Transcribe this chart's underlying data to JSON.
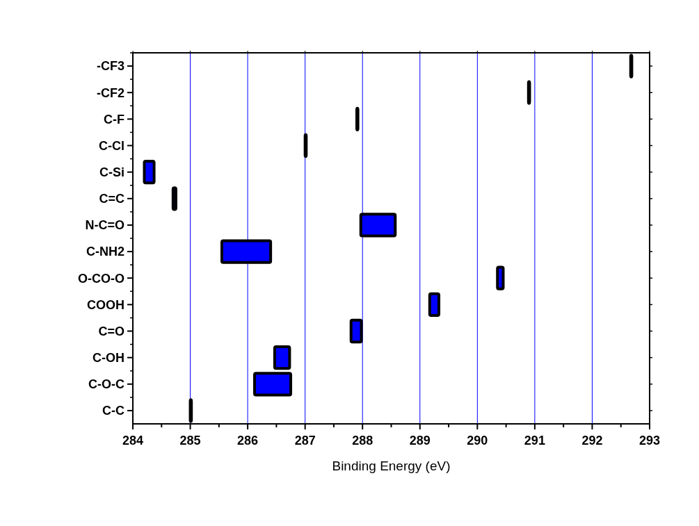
{
  "chart_data": {
    "type": "bar",
    "orientation": "horizontal",
    "xlabel": "Binding Energy (eV)",
    "categories": [
      "-CF3",
      "-CF2",
      "C-F",
      "C-Cl",
      "C-Si",
      "C=C",
      "N-C=O",
      "C-NH2",
      "O-CO-O",
      "COOH",
      "C=O",
      "C-OH",
      "C-O-C",
      "C-C"
    ],
    "base": [
      292.67,
      290.89,
      287.9,
      287.0,
      284.2,
      284.7,
      287.97,
      285.55,
      290.35,
      289.17,
      287.8,
      286.47,
      286.12,
      285.0
    ],
    "values": [
      0.02,
      0.02,
      0.02,
      0.02,
      0.17,
      0.05,
      0.6,
      0.85,
      0.1,
      0.16,
      0.18,
      0.26,
      0.63,
      0.02
    ],
    "color": "#0000ff",
    "xlim": [
      284,
      293
    ],
    "xticks": [
      284,
      285,
      286,
      287,
      288,
      289,
      290,
      291,
      292,
      293
    ],
    "grid": "x"
  }
}
